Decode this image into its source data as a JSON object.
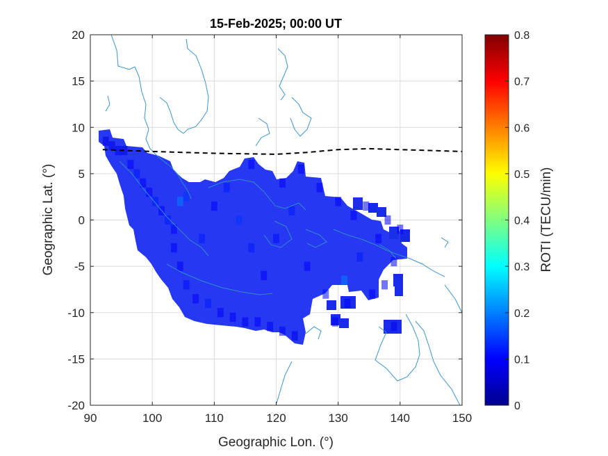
{
  "chart_data": {
    "type": "heatmap",
    "title": "15-Feb-2025; 00:00 UT",
    "xlabel": "Geographic Lon. (°)",
    "ylabel": "Geographic Lat. (°)",
    "xlim": [
      90,
      150
    ],
    "ylim": [
      -20,
      20
    ],
    "xticks": [
      90,
      100,
      110,
      120,
      130,
      140,
      150
    ],
    "yticks": [
      -20,
      -15,
      -10,
      -5,
      0,
      5,
      10,
      15,
      20
    ],
    "grid": true,
    "colorbar": {
      "label": "ROTI (TECU/min)",
      "colormap": "jet",
      "range": [
        0,
        0.8
      ],
      "ticks": [
        0,
        0.1,
        0.2,
        0.3,
        0.4,
        0.5,
        0.6,
        0.7,
        0.8
      ]
    },
    "magnetic_equator": {
      "style": "dashed",
      "lon": [
        92,
        100,
        110,
        120,
        125,
        130,
        135,
        140,
        150
      ],
      "lat": [
        7.6,
        7.4,
        7.2,
        7.1,
        7.3,
        7.6,
        7.7,
        7.6,
        7.4
      ]
    },
    "roti_cells": [
      [
        92.5,
        8.5,
        0.08
      ],
      [
        93.5,
        8.0,
        0.08
      ],
      [
        94.5,
        7.5,
        0.09
      ],
      [
        95.5,
        7.5,
        0.08
      ],
      [
        96.5,
        6.0,
        0.1
      ],
      [
        97.5,
        5.0,
        0.12
      ],
      [
        98.5,
        4.0,
        0.1
      ],
      [
        99.5,
        3.0,
        0.1
      ],
      [
        100.5,
        2.0,
        0.12
      ],
      [
        101.5,
        1.0,
        0.1
      ],
      [
        102.5,
        0.0,
        0.12
      ],
      [
        103.5,
        -1.0,
        0.1
      ],
      [
        104.5,
        2.0,
        0.2
      ],
      [
        105.5,
        2.5,
        0.14
      ],
      [
        103.5,
        -3.0,
        0.1
      ],
      [
        104.5,
        -5.0,
        0.1
      ],
      [
        105.5,
        -7.0,
        0.11
      ],
      [
        107.0,
        -8.5,
        0.1
      ],
      [
        109.0,
        -9.0,
        0.12
      ],
      [
        111.0,
        -10.0,
        0.1
      ],
      [
        113.0,
        -10.5,
        0.1
      ],
      [
        115.0,
        -11.0,
        0.09
      ],
      [
        117.0,
        -11.0,
        0.1
      ],
      [
        119.0,
        -11.5,
        0.1
      ],
      [
        121.0,
        -12.0,
        0.1
      ],
      [
        123.0,
        -12.5,
        0.09
      ],
      [
        108.0,
        -2.0,
        0.12
      ],
      [
        110.0,
        1.5,
        0.1
      ],
      [
        112.0,
        3.5,
        0.12
      ],
      [
        114.0,
        0.0,
        0.14
      ],
      [
        116.0,
        6.0,
        0.1
      ],
      [
        116.0,
        -3.0,
        0.12
      ],
      [
        118.0,
        -6.0,
        0.1
      ],
      [
        120.0,
        -2.0,
        0.11
      ],
      [
        121.0,
        4.0,
        0.1
      ],
      [
        122.5,
        1.0,
        0.12
      ],
      [
        124.0,
        5.5,
        0.1
      ],
      [
        125.0,
        -5.0,
        0.1
      ],
      [
        127.0,
        3.5,
        0.1
      ],
      [
        128.0,
        -8.0,
        0.11
      ],
      [
        130.0,
        2.0,
        0.1
      ],
      [
        131.0,
        -6.5,
        0.2
      ],
      [
        132.5,
        0.5,
        0.1
      ],
      [
        133.5,
        -4.0,
        0.12
      ],
      [
        134.5,
        1.5,
        0.1
      ],
      [
        135.5,
        -8.0,
        0.1
      ],
      [
        136.5,
        -2.0,
        0.1
      ],
      [
        138.0,
        0.0,
        0.1
      ],
      [
        139.0,
        -4.5,
        0.09
      ],
      [
        140.0,
        -1.0,
        0.09
      ],
      [
        137.5,
        -7.0,
        0.1
      ],
      [
        129.5,
        -11.0,
        0.1
      ],
      [
        131.5,
        -9.0,
        0.1
      ],
      [
        139.0,
        -11.5,
        0.09
      ]
    ]
  }
}
